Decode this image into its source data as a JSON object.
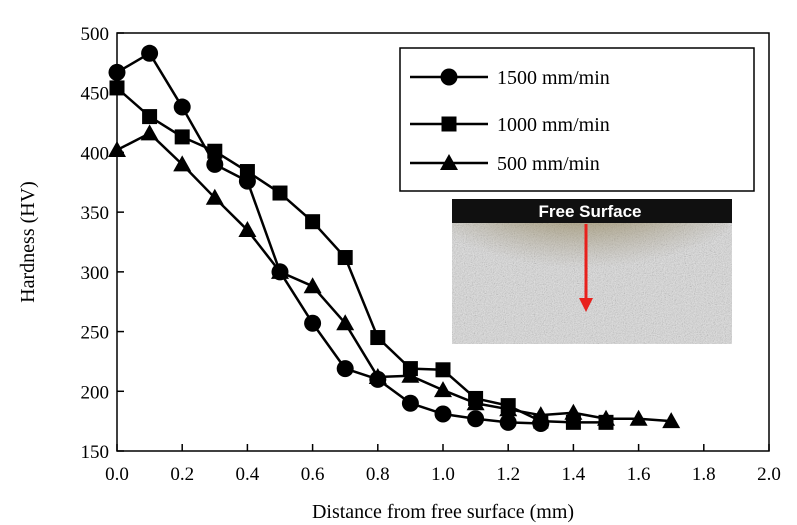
{
  "chart_data": {
    "type": "line",
    "title": "",
    "xlabel": "Distance from free surface (mm)",
    "ylabel": "Hardness (HV)",
    "xlim": [
      0.0,
      2.0
    ],
    "ylim": [
      150,
      500
    ],
    "x_ticks": [
      "0.0",
      "0.2",
      "0.4",
      "0.6",
      "0.8",
      "1.0",
      "1.2",
      "1.4",
      "1.6",
      "1.8",
      "2.0"
    ],
    "y_ticks": [
      "150",
      "200",
      "250",
      "300",
      "350",
      "400",
      "450",
      "500"
    ],
    "grid": false,
    "legend_position": "top-right",
    "series": [
      {
        "name": "1500 mm/min",
        "marker": "circle",
        "x": [
          0.0,
          0.1,
          0.2,
          0.3,
          0.4,
          0.5,
          0.6,
          0.7,
          0.8,
          0.9,
          1.0,
          1.1,
          1.2,
          1.3
        ],
        "y": [
          467,
          483,
          438,
          390,
          376,
          300,
          257,
          219,
          210,
          190,
          181,
          177,
          174,
          173
        ]
      },
      {
        "name": "1000 mm/min",
        "marker": "square",
        "x": [
          0.0,
          0.1,
          0.2,
          0.3,
          0.4,
          0.5,
          0.6,
          0.7,
          0.8,
          0.9,
          1.0,
          1.1,
          1.2,
          1.3,
          1.4,
          1.5
        ],
        "y": [
          454,
          430,
          413,
          401,
          384,
          366,
          342,
          312,
          245,
          219,
          218,
          194,
          188,
          175,
          174,
          174
        ]
      },
      {
        "name": "500 mm/min",
        "marker": "triangle",
        "x": [
          0.0,
          0.1,
          0.2,
          0.3,
          0.4,
          0.5,
          0.6,
          0.7,
          0.8,
          0.9,
          1.0,
          1.1,
          1.2,
          1.3,
          1.4,
          1.5,
          1.6,
          1.7
        ],
        "y": [
          402,
          416,
          390,
          362,
          335,
          300,
          288,
          257,
          212,
          213,
          201,
          190,
          185,
          180,
          182,
          177,
          177,
          175
        ]
      }
    ],
    "inset": {
      "label": "Free Surface",
      "arrow_color": "#e8201c"
    },
    "colors": {
      "series": "#000000",
      "background": "#ffffff"
    }
  }
}
